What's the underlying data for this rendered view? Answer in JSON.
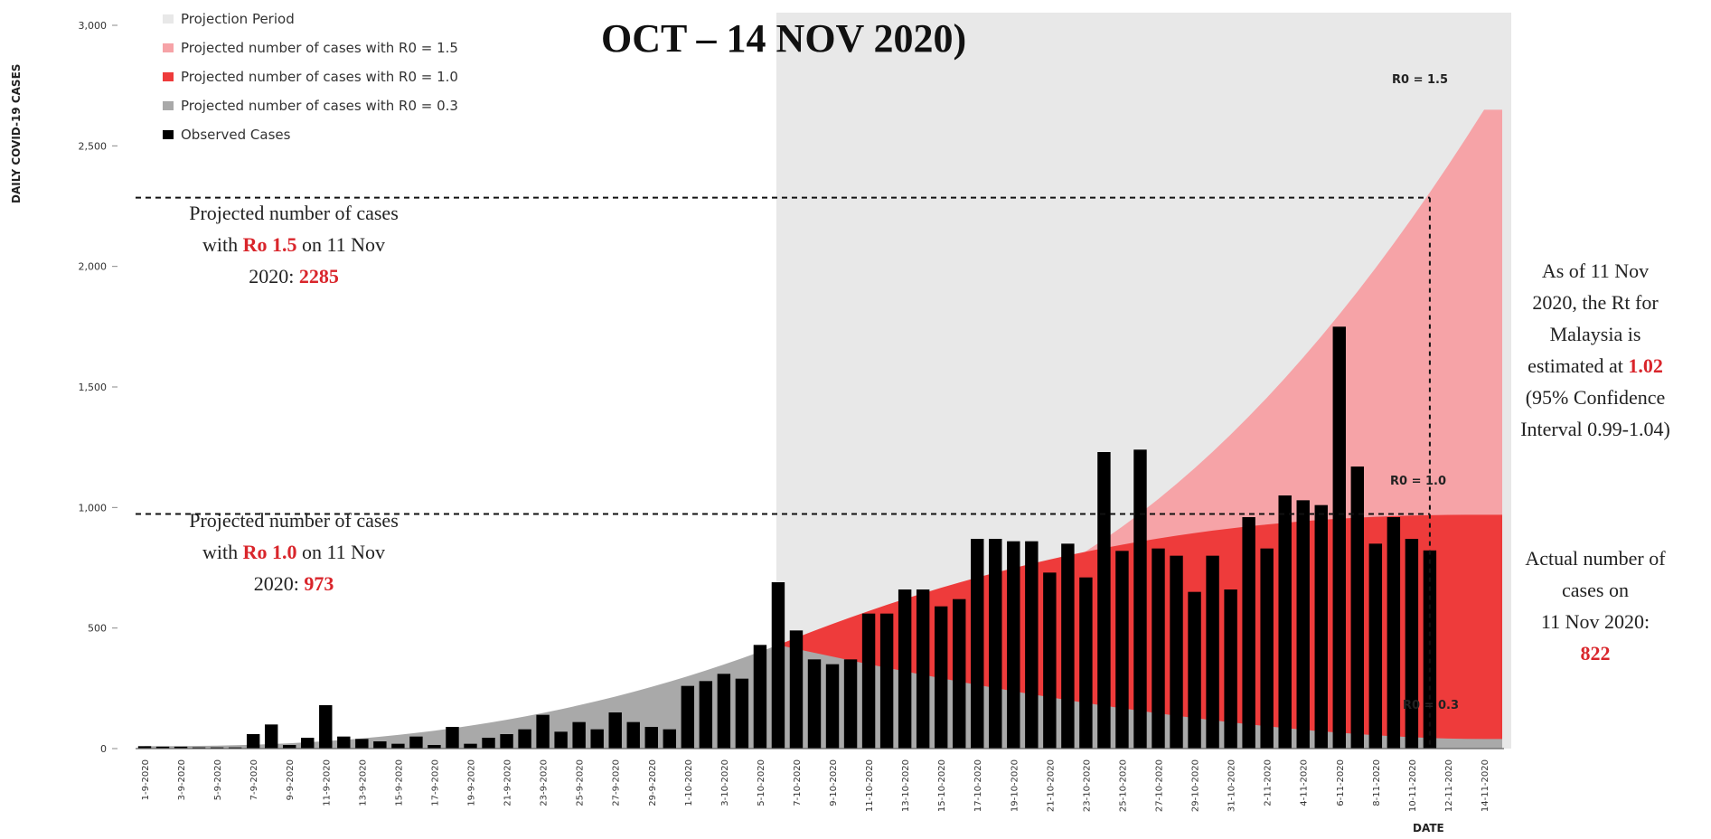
{
  "title": "OCT – 14 NOV 2020)",
  "chart_data": {
    "type": "bar",
    "ylabel": "DAILY COVID-19 CASES",
    "xlabel": "DATE",
    "ylim": [
      0,
      3000
    ],
    "yticks": [
      0,
      500,
      1000,
      1500,
      2000,
      2500,
      3000
    ],
    "ytick_labels": [
      "0",
      "500",
      "1,000",
      "1,500",
      "2,000",
      "2,500",
      "3,000"
    ],
    "x_labels": [
      "1-9-2020",
      "3-9-2020",
      "5-9-2020",
      "7-9-2020",
      "9-9-2020",
      "11-9-2020",
      "13-9-2020",
      "15-9-2020",
      "17-9-2020",
      "19-9-2020",
      "21-9-2020",
      "23-9-2020",
      "25-9-2020",
      "27-9-2020",
      "29-9-2020",
      "1-10-2020",
      "3-10-2020",
      "5-10-2020",
      "7-10-2020",
      "9-10-2020",
      "11-10-2020",
      "13-10-2020",
      "15-10-2020",
      "17-10-2020",
      "19-10-2020",
      "21-10-2020",
      "23-10-2020",
      "25-10-2020",
      "27-10-2020",
      "29-10-2020",
      "31-10-2020",
      "2-11-2020",
      "4-11-2020",
      "6-11-2020",
      "8-11-2020",
      "10-11-2020",
      "12-11-2020",
      "14-11-2020"
    ],
    "observed_cases": [
      10,
      8,
      8,
      5,
      5,
      5,
      60,
      100,
      15,
      45,
      180,
      50,
      40,
      30,
      20,
      50,
      15,
      90,
      20,
      45,
      60,
      80,
      140,
      70,
      110,
      80,
      150,
      110,
      90,
      80,
      260,
      280,
      310,
      290,
      430,
      690,
      490,
      370,
      350,
      370,
      560,
      560,
      660,
      660,
      590,
      620,
      870,
      870,
      860,
      860,
      730,
      850,
      710,
      1230,
      820,
      1240,
      830,
      800,
      650,
      800,
      660,
      960,
      830,
      1050,
      1030,
      1010,
      1750,
      1170,
      850,
      960,
      870,
      822
    ],
    "projection": {
      "start": "6-10-2020",
      "end": "14-11-2020",
      "r0_1_5_at_14_11": 2650,
      "r0_1_0_at_14_11": 970,
      "r0_0_3_at_14_11": 40
    },
    "series": [
      {
        "name": "Projection Period",
        "color": "#e8e8e8"
      },
      {
        "name": "Projected number of cases with R0 = 1.5",
        "color": "#f6a3a7"
      },
      {
        "name": "Projected number of cases with R0 = 1.0",
        "color": "#ee3b3b"
      },
      {
        "name": "Projected number of cases with R0 = 0.3",
        "color": "#a9a9a9"
      },
      {
        "name": "Observed Cases",
        "color": "#000000"
      }
    ],
    "legend_position": "top-left",
    "line_labels": {
      "r15": "R0 = 1.5",
      "r10": "R0 = 1.0",
      "r03": "R0 = 0.3"
    },
    "reference_lines": {
      "r15_value": 2285,
      "r10_value": 973
    }
  },
  "notes": {
    "proj15": {
      "line1": "Projected number of cases",
      "line2a": "with ",
      "line2b": "Ro 1.5",
      "line2c": " on 11 Nov",
      "line3a": "2020: ",
      "line3b": "2285"
    },
    "proj10": {
      "line1": "Projected number of cases",
      "line2a": "with ",
      "line2b": "Ro 1.0",
      "line2c": " on 11 Nov",
      "line3a": "2020: ",
      "line3b": "973"
    },
    "rt": {
      "line1": "As of 11 Nov",
      "line2": "2020, the Rt for",
      "line3": "Malaysia is",
      "line4a": "estimated at ",
      "line4b": "1.02",
      "line5": "(95% Confidence",
      "line6": "Interval 0.99-1.04)"
    },
    "actual": {
      "line1": "Actual number of",
      "line2": "cases on",
      "line3": "11 Nov 2020:",
      "line4": "822"
    }
  }
}
